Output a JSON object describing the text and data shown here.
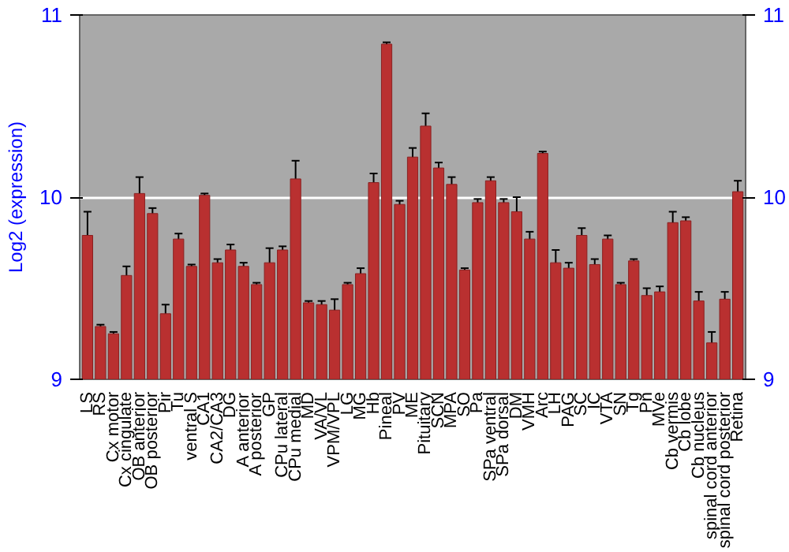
{
  "chart_data": {
    "type": "bar",
    "ylabel": "Log2 (expression)",
    "categories": [
      "LS",
      "RS",
      "Cx motor",
      "Cx cingulate",
      "OB anterior",
      "OB posterior",
      "Pir",
      "Tu",
      "ventral S",
      "CA1",
      "CA2/CA3",
      "DG",
      "A anterior",
      "A posterior",
      "GP",
      "CPu lateral",
      "CPu medial",
      "MD",
      "VA/VL",
      "VPM/VPL",
      "LG",
      "MG",
      "Hb",
      "Pineal",
      "PV",
      "ME",
      "Pituitary",
      "SCN",
      "MPA",
      "SO",
      "Pa",
      "SPa ventral",
      "SPa dorsal",
      "DM",
      "VMH",
      "Arc",
      "LH",
      "PAG",
      "SC",
      "IC",
      "VTA",
      "SN",
      "Tg",
      "Pn",
      "MVe",
      "Cb vermis",
      "Cb lobe",
      "Cb nucleus",
      "spinal cord anterior",
      "spinal cord posterior",
      "Retina"
    ],
    "values": [
      9.79,
      9.29,
      9.25,
      9.57,
      10.02,
      9.91,
      9.36,
      9.77,
      9.62,
      10.01,
      9.64,
      9.71,
      9.62,
      9.52,
      9.64,
      9.71,
      10.1,
      9.42,
      9.41,
      9.38,
      9.52,
      9.58,
      10.08,
      10.84,
      9.96,
      10.22,
      10.39,
      10.16,
      10.07,
      9.6,
      9.97,
      10.09,
      9.97,
      9.92,
      9.77,
      10.24,
      9.64,
      9.61,
      9.79,
      9.63,
      9.77,
      9.52,
      9.65,
      9.46,
      9.48,
      9.86,
      9.87,
      9.43,
      9.2,
      9.44,
      10.03
    ],
    "errors": [
      0.13,
      0.01,
      0.01,
      0.05,
      0.09,
      0.03,
      0.05,
      0.03,
      0.01,
      0.01,
      0.02,
      0.03,
      0.02,
      0.01,
      0.08,
      0.02,
      0.1,
      0.01,
      0.02,
      0.06,
      0.01,
      0.03,
      0.05,
      0.01,
      0.02,
      0.05,
      0.07,
      0.03,
      0.04,
      0.01,
      0.02,
      0.02,
      0.02,
      0.08,
      0.04,
      0.01,
      0.07,
      0.03,
      0.04,
      0.03,
      0.02,
      0.01,
      0.01,
      0.04,
      0.03,
      0.06,
      0.02,
      0.05,
      0.06,
      0.04,
      0.06
    ],
    "color": "#b93030",
    "ylim": [
      9,
      11
    ],
    "yticks": [
      9,
      10,
      11
    ],
    "y2lim": [
      9,
      11
    ],
    "y2ticks": [
      9,
      10,
      11
    ],
    "grid": "y"
  }
}
